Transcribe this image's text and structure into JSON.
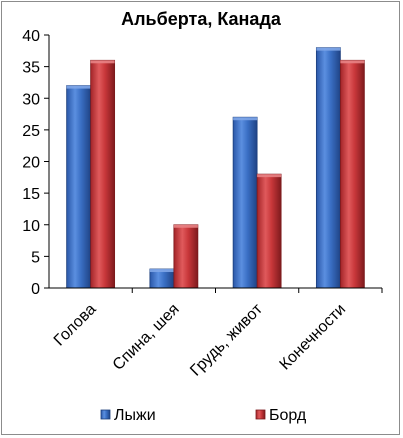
{
  "chart_data": {
    "type": "bar",
    "title": "Альберта, Канада",
    "xlabel": "",
    "ylabel": "",
    "categories": [
      "Голова",
      "Спина, шея",
      "Грудь, живот",
      "Конечности"
    ],
    "series": [
      {
        "name": "Лыжи",
        "values": [
          32,
          3,
          27,
          38
        ],
        "color": "#3a6fc4"
      },
      {
        "name": "Борд",
        "values": [
          36,
          10,
          18,
          36
        ],
        "color": "#c8373a"
      }
    ],
    "ylim": [
      0,
      40
    ],
    "yticks": [
      "0",
      "5",
      "10",
      "15",
      "20",
      "25",
      "30",
      "35",
      "40"
    ],
    "grid": false,
    "legend_position": "bottom"
  }
}
